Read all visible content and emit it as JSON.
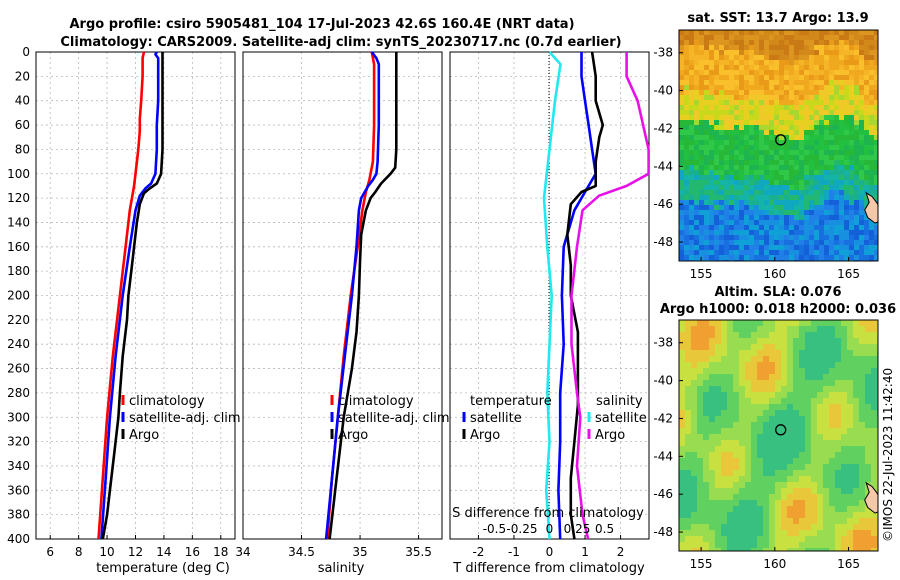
{
  "figure": {
    "title_line1": "Argo profile: csiro 5905481_104 17-Jul-2023 42.6S 160.4E (NRT data)",
    "title_line2": "Climatology: CARS2009. Satellite-adj clim: synTS_20230717.nc (0.7d earlier)",
    "stamp": "©IMOS 22-Jul-2023 11:42:40"
  },
  "colors": {
    "red": "#ff0000",
    "blue": "#0000ff",
    "black": "#000000",
    "cyan": "#22e8f0",
    "magenta": "#e810e8"
  },
  "chart_data": [
    {
      "id": "temperature",
      "type": "line",
      "xlabel": "temperature (deg C)",
      "ylabel": "",
      "xlim": [
        5,
        19
      ],
      "ylim": [
        0,
        400
      ],
      "xticks": [
        "6",
        "8",
        "10",
        "12",
        "14",
        "16",
        "18"
      ],
      "yticks": [
        "0",
        "20",
        "40",
        "60",
        "80",
        "100",
        "120",
        "140",
        "160",
        "180",
        "200",
        "220",
        "240",
        "260",
        "280",
        "300",
        "320",
        "340",
        "360",
        "380",
        "400"
      ],
      "legend": [
        "climatology",
        "satellite-adj. clim",
        "Argo"
      ],
      "series": [
        {
          "name": "climatology",
          "color": "red",
          "depth": [
            0,
            5,
            20,
            40,
            55,
            65,
            80,
            100,
            110,
            130,
            160,
            200,
            250,
            300,
            350,
            400
          ],
          "values": [
            12.6,
            12.5,
            12.5,
            12.4,
            12.3,
            12.3,
            12.2,
            12.0,
            11.9,
            11.6,
            11.3,
            10.9,
            10.4,
            10.0,
            9.7,
            9.4
          ]
        },
        {
          "name": "satellite-adj. clim",
          "color": "blue",
          "depth": [
            0,
            2,
            5,
            20,
            40,
            60,
            80,
            100,
            108,
            112,
            118,
            130,
            160,
            200,
            250,
            300,
            350,
            400
          ],
          "values": [
            13.5,
            13.4,
            13.6,
            13.6,
            13.6,
            13.5,
            13.5,
            13.4,
            13.1,
            12.7,
            12.3,
            12.0,
            11.6,
            11.1,
            10.6,
            10.2,
            9.9,
            9.6
          ]
        },
        {
          "name": "Argo",
          "color": "black",
          "depth": [
            0,
            5,
            20,
            40,
            60,
            80,
            100,
            108,
            112,
            116,
            125,
            140,
            170,
            200,
            220,
            250,
            280,
            300,
            330,
            360,
            380,
            400
          ],
          "values": [
            13.9,
            13.9,
            13.9,
            13.9,
            13.9,
            13.9,
            13.8,
            13.5,
            13.0,
            12.6,
            12.3,
            12.1,
            11.8,
            11.5,
            11.4,
            11.1,
            10.9,
            10.8,
            10.5,
            10.2,
            10.0,
            9.7
          ]
        }
      ]
    },
    {
      "id": "salinity",
      "type": "line",
      "xlabel": "salinity",
      "xlim": [
        34.0,
        35.7
      ],
      "ylim": [
        0,
        400
      ],
      "xticks": [
        "34",
        "34.5",
        "35",
        "35.5"
      ],
      "legend": [
        "climatology",
        "satellite-adj. clim",
        "Argo"
      ],
      "series": [
        {
          "name": "climatology",
          "color": "red",
          "depth": [
            0,
            10,
            30,
            60,
            90,
            105,
            115,
            130,
            160,
            200,
            250,
            300,
            350,
            400
          ],
          "values": [
            35.1,
            35.12,
            35.12,
            35.12,
            35.11,
            35.08,
            35.05,
            35.02,
            34.98,
            34.92,
            34.86,
            34.81,
            34.76,
            34.72
          ]
        },
        {
          "name": "satellite-adj. clim",
          "color": "blue",
          "depth": [
            0,
            5,
            10,
            30,
            60,
            90,
            100,
            105,
            110,
            115,
            120,
            130,
            160,
            200,
            250,
            300,
            350,
            400
          ],
          "values": [
            35.1,
            35.14,
            35.16,
            35.16,
            35.16,
            35.15,
            35.14,
            35.11,
            35.07,
            35.04,
            35.01,
            34.99,
            34.97,
            34.93,
            34.87,
            34.81,
            34.76,
            34.71
          ]
        },
        {
          "name": "Argo",
          "color": "black",
          "depth": [
            0,
            5,
            20,
            40,
            60,
            80,
            95,
            100,
            108,
            115,
            120,
            130,
            150,
            170,
            200,
            230,
            260,
            300,
            350,
            400
          ],
          "values": [
            35.31,
            35.31,
            35.31,
            35.31,
            35.31,
            35.31,
            35.3,
            35.26,
            35.18,
            35.13,
            35.09,
            35.05,
            35.01,
            35.0,
            34.99,
            34.97,
            34.93,
            34.86,
            34.8,
            34.74
          ]
        }
      ]
    },
    {
      "id": "difference",
      "type": "line",
      "xlabel": "T difference from climatology",
      "xlabel_top": "S difference from climatology",
      "xlim": [
        -2.8,
        2.8
      ],
      "ylim": [
        0,
        400
      ],
      "xticks": [
        "-2",
        "-1",
        "0",
        "1",
        "2"
      ],
      "xticks_top": [
        "-0.5",
        "-0.25",
        "0",
        "0.25",
        "0.5"
      ],
      "legend_headers": [
        "temperature",
        "salinity"
      ],
      "legend_left": [
        "satellite",
        "Argo"
      ],
      "legend_right": [
        "satellite",
        "Argo"
      ],
      "series": [
        {
          "name": "temperature satellite",
          "color": "blue",
          "depth": [
            0,
            20,
            40,
            60,
            80,
            100,
            110,
            130,
            160,
            200,
            240,
            280,
            320,
            360,
            400
          ],
          "values": [
            0.9,
            0.9,
            1.0,
            1.1,
            1.2,
            1.3,
            1.1,
            0.7,
            0.4,
            0.35,
            0.4,
            0.3,
            0.3,
            0.25,
            0.3
          ]
        },
        {
          "name": "temperature Argo",
          "color": "black",
          "depth": [
            0,
            20,
            40,
            60,
            70,
            90,
            110,
            115,
            125,
            150,
            175,
            200,
            230,
            260,
            290,
            320,
            350,
            380,
            400
          ],
          "values": [
            1.2,
            1.3,
            1.3,
            1.5,
            1.4,
            1.3,
            1.3,
            0.9,
            0.6,
            0.5,
            0.6,
            0.6,
            0.8,
            0.8,
            0.8,
            0.7,
            0.6,
            0.6,
            0.7
          ]
        },
        {
          "name": "salinity satellite",
          "color": "cyan",
          "depth": [
            0,
            10,
            40,
            80,
            120,
            160,
            200,
            240,
            280,
            320,
            360,
            400
          ],
          "values": [
            0.0,
            0.1,
            0.05,
            0.0,
            -0.05,
            -0.02,
            0.02,
            0.0,
            -0.02,
            0.0,
            -0.03,
            0.0
          ]
        },
        {
          "name": "salinity Argo",
          "color": "magenta",
          "depth": [
            0,
            20,
            40,
            60,
            80,
            100,
            110,
            118,
            130,
            160,
            200,
            240,
            280,
            300,
            340,
            380,
            400
          ],
          "values": [
            0.7,
            0.7,
            0.8,
            0.85,
            0.9,
            0.9,
            0.7,
            0.45,
            0.3,
            0.25,
            0.2,
            0.2,
            0.25,
            0.28,
            0.25,
            0.3,
            0.35
          ]
        }
      ]
    },
    {
      "id": "sst_map",
      "type": "heatmap",
      "title": "sat. SST: 13.7 Argo: 13.9",
      "xticks": [
        "155",
        "160",
        "165"
      ],
      "yticks": [
        "-38",
        "-40",
        "-42",
        "-44",
        "-46",
        "-48"
      ],
      "xlim": [
        153.5,
        167
      ],
      "ylim": [
        -49,
        -36.8
      ],
      "marker": {
        "lon": 160.4,
        "lat": -42.6
      }
    },
    {
      "id": "sla_map",
      "type": "heatmap",
      "title_line1": "Altim. SLA: 0.076",
      "title_line2": "Argo h1000: 0.018 h2000: 0.036",
      "xticks": [
        "155",
        "160",
        "165"
      ],
      "yticks": [
        "-38",
        "-40",
        "-42",
        "-44",
        "-46",
        "-48"
      ],
      "xlim": [
        153.5,
        167
      ],
      "ylim": [
        -49,
        -36.8
      ],
      "marker": {
        "lon": 160.4,
        "lat": -42.6
      }
    }
  ]
}
